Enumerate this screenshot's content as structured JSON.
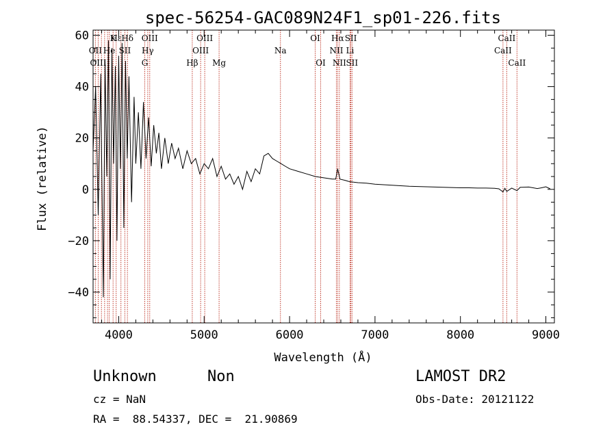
{
  "chart_data": {
    "type": "line",
    "title": "spec-56254-GAC089N24F1_sp01-226.fits",
    "xlabel": "Wavelength (Å)",
    "ylabel": "Flux (relative)",
    "xlim": [
      3700,
      9100
    ],
    "ylim": [
      -52,
      62
    ],
    "x_ticks": [
      4000,
      5000,
      6000,
      7000,
      8000,
      9000
    ],
    "x_tick_labels": [
      "4000",
      "5000",
      "6000",
      "7000",
      "8000",
      "9000"
    ],
    "y_ticks": [
      -40,
      -20,
      0,
      20,
      40,
      60
    ],
    "y_tick_labels": [
      "−40",
      "−20",
      "0",
      "20",
      "40",
      "60"
    ],
    "line_color": "#000000",
    "marker_color": "#c0392b",
    "series": [
      {
        "x": [
          3700,
          3730,
          3760,
          3790,
          3800,
          3820,
          3840,
          3860,
          3880,
          3900,
          3920,
          3940,
          3960,
          3980,
          4000,
          4020,
          4040,
          4060,
          4080,
          4100,
          4120,
          4150,
          4180,
          4200,
          4230,
          4260,
          4290,
          4320,
          4350,
          4380,
          4410,
          4440,
          4470,
          4500,
          4540,
          4580,
          4620,
          4660,
          4700,
          4750,
          4800,
          4850,
          4900,
          4950,
          5000,
          5050,
          5100,
          5150,
          5200,
          5250,
          5300,
          5350,
          5400,
          5450,
          5500,
          5550,
          5600,
          5650,
          5700,
          5750,
          5800,
          5850,
          5900,
          5950,
          6000,
          6100,
          6200,
          6300,
          6400,
          6500,
          6540,
          6563,
          6590,
          6650,
          6700,
          6800,
          6900,
          7000,
          7100,
          7200,
          7300,
          7400,
          7500,
          7600,
          7700,
          7800,
          7900,
          8000,
          8100,
          8200,
          8300,
          8400,
          8450,
          8498,
          8520,
          8542,
          8600,
          8662,
          8700,
          8800,
          8900,
          8950,
          9000,
          9050
        ],
        "y": [
          15,
          40,
          -10,
          45,
          12,
          -42,
          50,
          5,
          58,
          -35,
          55,
          10,
          48,
          -20,
          52,
          8,
          57,
          -15,
          50,
          12,
          44,
          -5,
          36,
          10,
          30,
          8,
          34,
          12,
          28,
          9,
          25,
          14,
          22,
          8,
          20,
          10,
          18,
          12,
          16,
          8,
          15,
          10,
          12,
          6,
          10,
          8,
          12,
          5,
          9,
          4,
          6,
          2,
          5,
          0,
          7,
          3,
          8,
          6,
          13,
          14,
          12,
          11,
          10,
          9,
          8,
          7,
          6,
          5,
          4.5,
          4,
          4,
          8,
          4,
          3.5,
          3,
          2.6,
          2.4,
          2,
          1.8,
          1.6,
          1.4,
          1.2,
          1.1,
          1.0,
          0.9,
          0.8,
          0.7,
          0.6,
          0.6,
          0.5,
          0.5,
          0.4,
          0.2,
          -1.0,
          0.4,
          -0.8,
          0.5,
          -0.5,
          0.8,
          0.9,
          0.3,
          0.6,
          1.0,
          0.2
        ]
      }
    ],
    "line_labels": [
      {
        "name": "Hε",
        "x": 3970,
        "text": "Hε",
        "row": 0
      },
      {
        "name": "K",
        "x": 3934,
        "text": "K",
        "row": 0
      },
      {
        "name": "Hδ",
        "x": 4102,
        "text": "Hδ",
        "row": 0
      },
      {
        "name": "OIII-4363",
        "x": 4363,
        "text": "OIII",
        "row": 0
      },
      {
        "name": "OIII-5007",
        "x": 5007,
        "text": "OIII",
        "row": 0
      },
      {
        "name": "OI-6300",
        "x": 6300,
        "text": "OI",
        "row": 0
      },
      {
        "name": "Hα",
        "x": 6563,
        "text": "Hα",
        "row": 0
      },
      {
        "name": "SII-top",
        "x": 6717,
        "text": "SII",
        "row": 0
      },
      {
        "name": "CaII-top",
        "x": 8542,
        "text": "CaII",
        "row": 0
      },
      {
        "name": "OII",
        "x": 3727,
        "text": "OII",
        "row": 1
      },
      {
        "name": "He",
        "x": 3889,
        "text": "He",
        "row": 1
      },
      {
        "name": "SII-4068",
        "x": 4072,
        "text": "SII",
        "row": 1
      },
      {
        "name": "Hγ",
        "x": 4340,
        "text": "Hγ",
        "row": 1
      },
      {
        "name": "OIII-4959",
        "x": 4959,
        "text": "OIII",
        "row": 1
      },
      {
        "name": "NII-6548",
        "x": 6548,
        "text": "NII",
        "row": 1
      },
      {
        "name": "Li",
        "x": 6708,
        "text": "Li",
        "row": 1
      },
      {
        "name": "CaII-mid",
        "x": 8498,
        "text": "CaII",
        "row": 1
      },
      {
        "name": "OIII-3869",
        "x": 3760,
        "text": "OIII",
        "row": 2
      },
      {
        "name": "G",
        "x": 4305,
        "text": "G",
        "row": 2
      },
      {
        "name": "Hβ",
        "x": 4861,
        "text": "Hβ",
        "row": 2
      },
      {
        "name": "Mg",
        "x": 5175,
        "text": "Mg",
        "row": 2
      },
      {
        "name": "Na",
        "x": 5893,
        "text": "Na",
        "row": 1
      },
      {
        "name": "OI-6364",
        "x": 6364,
        "text": "OI",
        "row": 2
      },
      {
        "name": "NII-6583",
        "x": 6583,
        "text": "NII",
        "row": 2
      },
      {
        "name": "SII-6731",
        "x": 6731,
        "text": "SII",
        "row": 2
      },
      {
        "name": "CaII-low",
        "x": 8662,
        "text": "CaII",
        "row": 2
      }
    ],
    "marker_lines": [
      3727,
      3760,
      3798,
      3835,
      3869,
      3889,
      3934,
      3970,
      4026,
      4072,
      4102,
      4305,
      4340,
      4363,
      4861,
      4959,
      5007,
      5175,
      5893,
      6300,
      6364,
      6548,
      6563,
      6583,
      6708,
      6717,
      6731,
      8498,
      8542,
      8662
    ]
  },
  "info": {
    "class": "Unknown",
    "subclass": "Non",
    "cz": "cz = NaN",
    "coords": "RA =  88.54337, DEC =  21.90869",
    "survey": "LAMOST DR2",
    "obs_date": "Obs-Date: 20121122"
  }
}
